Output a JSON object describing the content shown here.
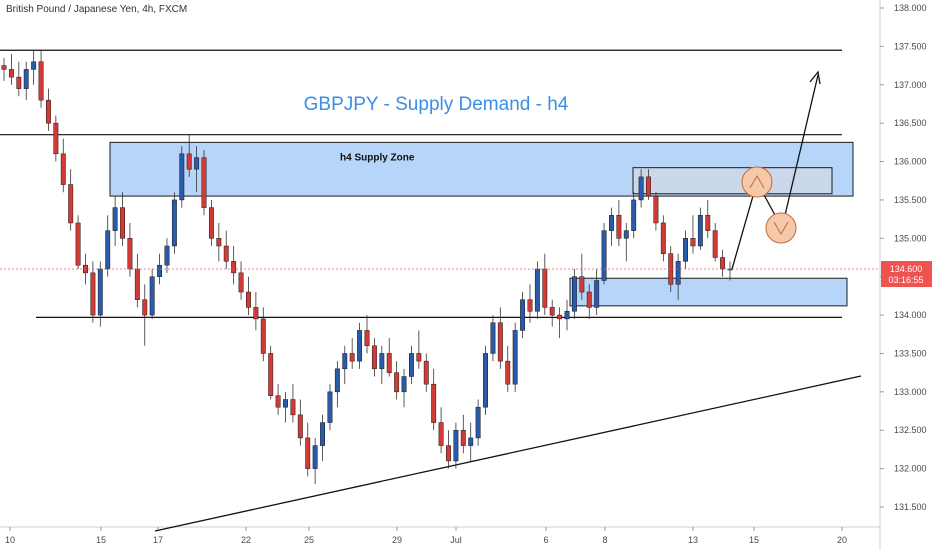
{
  "symbol": "British Pound / Japanese Yen, 4h, FXCM",
  "chart_data": {
    "type": "candlestick",
    "title": "GBPJPY - Supply Demand - h4",
    "y_ticks": [
      "138.000",
      "137.500",
      "137.000",
      "136.500",
      "136.000",
      "135.500",
      "135.000",
      "134.500",
      "134.000",
      "133.500",
      "133.000",
      "132.500",
      "132.000",
      "131.500"
    ],
    "ylim": [
      131.3,
      138.1
    ],
    "x_ticks": [
      "10",
      "15",
      "17",
      "22",
      "25",
      "29",
      "Jul",
      "6",
      "8",
      "13",
      "15",
      "20"
    ],
    "last_price": "134.600",
    "countdown": "03:16:55",
    "supply_zone_label": "h4 Supply Zone",
    "supply_zone": {
      "price_high": 136.25,
      "price_low": 135.55
    },
    "demand_zone": {
      "price_high": 134.48,
      "price_low": 134.12
    },
    "inner_zone": {
      "price_high": 135.92,
      "price_low": 135.58
    },
    "horizontal_levels": [
      137.45,
      136.35,
      133.97
    ],
    "colors": {
      "bull": "#2a5ba8",
      "bear": "#d23b35",
      "zone_fill": "#a9cef7",
      "zone_stroke": "#1c1c1c",
      "title": "#3b8ee6",
      "price_line": "#e06060",
      "price_label_bg": "#ef5350",
      "circle_fill": "#f4c8a8",
      "circle_stroke": "#c66a3a"
    }
  }
}
